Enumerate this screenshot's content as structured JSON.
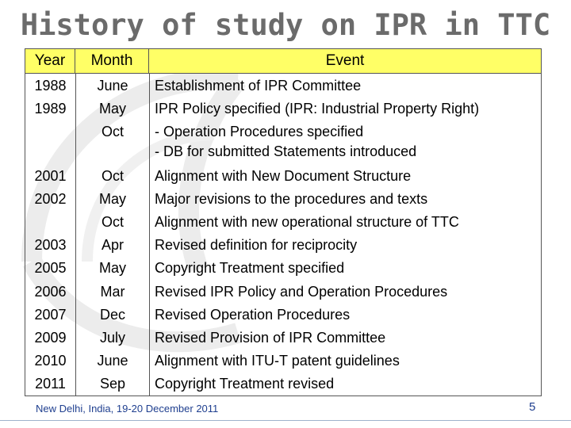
{
  "title": "History of study on IPR in TTC",
  "table": {
    "headers": {
      "year": "Year",
      "month": "Month",
      "event": "Event"
    },
    "rows": [
      {
        "year": "1988",
        "month": "June",
        "event": [
          "Establishment of IPR Committee"
        ]
      },
      {
        "year": "1989",
        "month": "May",
        "event": [
          "IPR Policy specified (IPR: Industrial Property Right)"
        ]
      },
      {
        "year": "",
        "month": "Oct",
        "event": [
          "- Operation Procedures specified",
          "- DB for submitted Statements introduced"
        ]
      },
      {
        "year": "2001",
        "month": "Oct",
        "event": [
          "Alignment with New Document Structure"
        ]
      },
      {
        "year": "2002",
        "month": "May",
        "event": [
          "Major revisions to the procedures and texts"
        ]
      },
      {
        "year": "",
        "month": "Oct",
        "event": [
          "Alignment with new operational structure of TTC"
        ]
      },
      {
        "year": "2003",
        "month": "Apr",
        "event": [
          "Revised definition for reciprocity"
        ]
      },
      {
        "year": "2005",
        "month": "May",
        "event": [
          "Copyright Treatment specified"
        ]
      },
      {
        "year": "2006",
        "month": "Mar",
        "event": [
          "Revised IPR Policy and Operation Procedures"
        ]
      },
      {
        "year": "2007",
        "month": "Dec",
        "event": [
          "Revised Operation Procedures"
        ]
      },
      {
        "year": "2009",
        "month": "July",
        "event": [
          "Revised Provision of IPR Committee"
        ]
      },
      {
        "year": "2010",
        "month": "June",
        "event": [
          "Alignment with ITU-T patent guidelines"
        ]
      },
      {
        "year": "2011",
        "month": "Sep",
        "event": [
          "Copyright Treatment revised"
        ]
      }
    ]
  },
  "footer": "New Delhi, India, 19-20 December 2011",
  "page_number": "5"
}
